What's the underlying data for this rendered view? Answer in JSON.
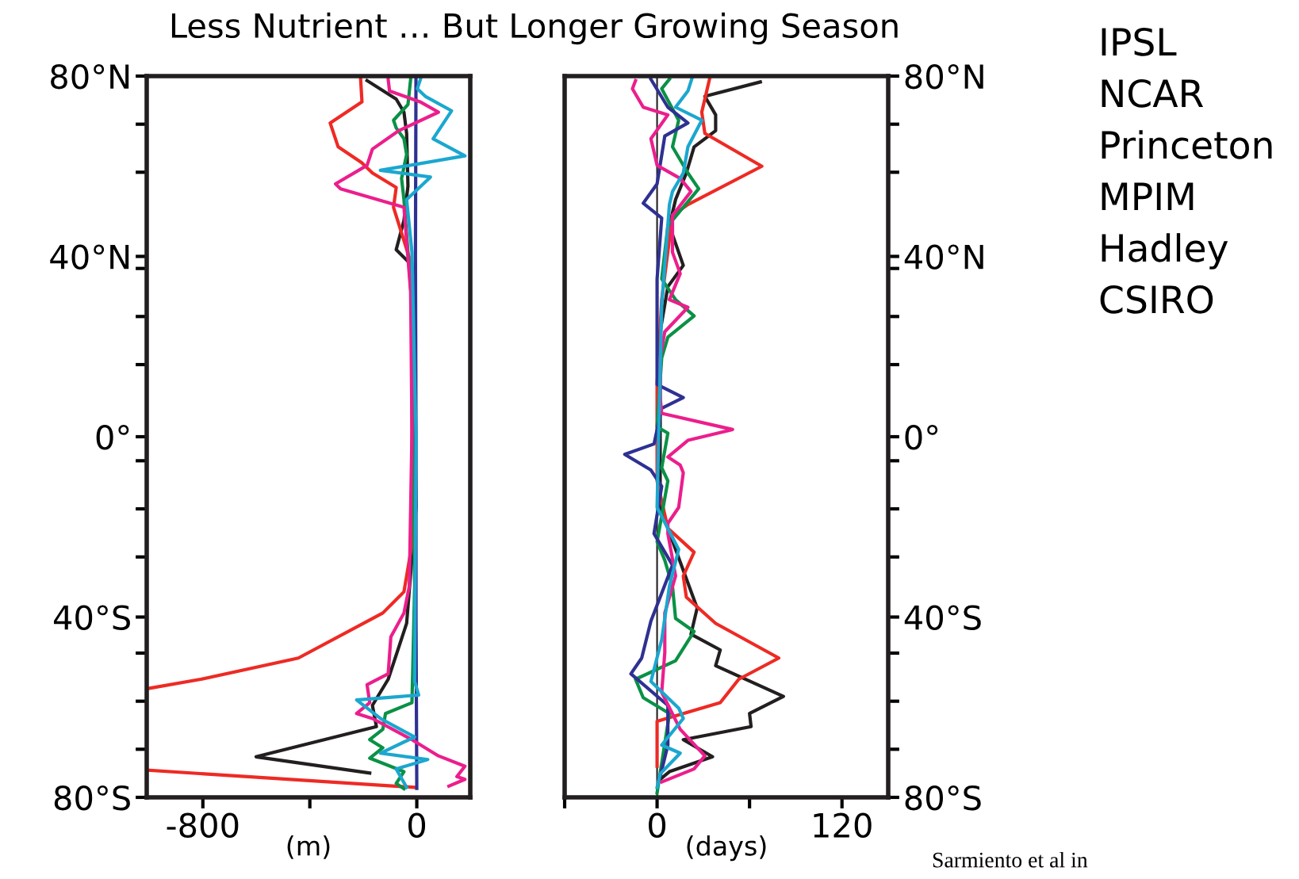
{
  "chart_data": [
    {
      "type": "line",
      "orientation": "horizontal",
      "title": "Less Nutrient … But Longer Growing Season",
      "xlabel": "(m)",
      "xlim": [
        -1010,
        200
      ],
      "xticks": [
        -800,
        {
          "value": -400,
          "label": null
        },
        0
      ],
      "ylim": [
        -80,
        80
      ],
      "yticks": [
        {
          "value": -80,
          "label": "80°S"
        },
        {
          "value": -69.33,
          "label": null
        },
        {
          "value": -58.67,
          "label": null
        },
        {
          "value": -48,
          "label": null
        },
        {
          "value": -40,
          "label": "40°S"
        },
        {
          "value": -26.67,
          "label": null
        },
        {
          "value": -16,
          "label": null
        },
        {
          "value": -5.33,
          "label": null
        },
        {
          "value": 0,
          "label": "0°"
        },
        {
          "value": 16,
          "label": null
        },
        {
          "value": 26.67,
          "label": null
        },
        {
          "value": 37.33,
          "label": null
        },
        {
          "value": 40,
          "label": "40°N"
        },
        {
          "value": 58.67,
          "label": null
        },
        {
          "value": 69.33,
          "label": null
        },
        {
          "value": 80,
          "label": "80°N"
        }
      ],
      "series": [
        {
          "color": "#231f20",
          "x": [
            79,
            74.9,
            72,
            67.3,
            55.6,
            48,
            41.5,
            38.6,
            20,
            -15.7,
            -41.4,
            -53.8,
            -59.6,
            -64.3,
            -71,
            -74.6
          ],
          "values": [
            -186,
            -77,
            -48,
            -38,
            -33,
            -48,
            -77,
            -28,
            -10,
            -3,
            -38,
            -107,
            -166,
            -151,
            -601,
            -176
          ]
        },
        {
          "color": "#ee2a24",
          "x": [
            79.3,
            74.3,
            69.6,
            64.3,
            60.8,
            58.5,
            55.3,
            50.9,
            39.7,
            29.2,
            -23.9,
            -34.4,
            -39.1,
            -49.1,
            -53.8,
            -55.8,
            -65,
            -74,
            -77.8
          ],
          "values": [
            -210,
            -205,
            -324,
            -294,
            -206,
            -166,
            -77,
            -87,
            -28,
            -18,
            -18,
            -48,
            -127,
            -443,
            -808,
            -1000,
            null,
            -1000,
            -3
          ]
        },
        {
          "color": "#0a9146",
          "x": [
            79.3,
            73.7,
            70.2,
            68.5,
            66.1,
            62.6,
            57.3,
            52.6,
            29.2,
            -33.2,
            -59,
            -61.4,
            -64.9,
            -67.2,
            -69,
            -71.3,
            -74.3,
            -76.9,
            -78.1
          ],
          "values": [
            -23,
            -33,
            -87,
            -77,
            -48,
            -38,
            -57,
            -48,
            -18,
            -8,
            -18,
            -117,
            -127,
            -176,
            -127,
            -176,
            -48,
            -77,
            -48
          ]
        },
        {
          "color": "#2e3192",
          "x": [
            80,
            40,
            0,
            -40,
            -78
          ],
          "values": [
            -3,
            -5,
            -3,
            -3,
            0
          ]
        },
        {
          "color": "#ec1e8c",
          "x": [
            79.3,
            76.7,
            74.3,
            72,
            67.9,
            63.8,
            60.2,
            56.1,
            55,
            50.9,
            32.1,
            1,
            -33.2,
            -39.1,
            -44.4,
            -52.6,
            -55,
            -59,
            -61.4,
            -62.5,
            -67.2,
            -70.8,
            -73.1,
            -75.4,
            -76,
            -77.5
          ],
          "values": [
            -107,
            -102,
            12,
            81,
            -67,
            -166,
            -186,
            -304,
            -285,
            -48,
            -23,
            -18,
            -28,
            -48,
            -97,
            -107,
            -186,
            -176,
            -225,
            -166,
            -18,
            81,
            180,
            150,
            180,
            120
          ]
        },
        {
          "color": "#1ba7cf",
          "x": [
            79.9,
            77.2,
            75.5,
            72.3,
            66.1,
            62.3,
            59.1,
            57.6,
            52.6,
            40.9,
            -0.1,
            -54.3,
            -57.3,
            -58.4,
            -62.5,
            -66.6,
            -70.2,
            -71.6,
            -73.7,
            -77.8
          ],
          "values": [
            17,
            2,
            32,
            130,
            61,
            180,
            -136,
            51,
            -38,
            -18,
            -3,
            -8,
            7,
            -225,
            -136,
            -8,
            -136,
            41,
            -77,
            -38
          ]
        }
      ]
    },
    {
      "type": "line",
      "orientation": "horizontal",
      "xlabel": "(days)",
      "xlim": [
        -60,
        150
      ],
      "xticks": [
        {
          "value": -60,
          "label": null
        },
        0,
        {
          "value": 60,
          "label": null
        },
        120
      ],
      "ylim": [
        -80,
        80
      ],
      "yticks": [
        {
          "value": -80,
          "label": "80°S"
        },
        {
          "value": -69.33,
          "label": null
        },
        {
          "value": -58.67,
          "label": null
        },
        {
          "value": -48,
          "label": null
        },
        {
          "value": -40,
          "label": "40°S"
        },
        {
          "value": -26.67,
          "label": null
        },
        {
          "value": -16,
          "label": null
        },
        {
          "value": -5.33,
          "label": null
        },
        {
          "value": 0,
          "label": "0°"
        },
        {
          "value": 16,
          "label": null
        },
        {
          "value": 26.67,
          "label": null
        },
        {
          "value": 37.33,
          "label": null
        },
        {
          "value": 40,
          "label": "40°N"
        },
        {
          "value": 58.67,
          "label": null
        },
        {
          "value": 69.33,
          "label": null
        },
        {
          "value": 80,
          "label": "80°N"
        }
      ],
      "ref_lines": [
        {
          "axis": "x",
          "value": 0,
          "color": "#231f20"
        }
      ],
      "series": [
        {
          "color": "#231f20",
          "x": [
            78.7,
            75.5,
            71.4,
            67.9,
            64.3,
            58.5,
            52.6,
            46.8,
            38,
            33.3,
            23.3,
            -15.7,
            -38,
            -43.8,
            -47.3,
            -50.8,
            -57.6,
            -61.4,
            -64.3,
            -67.2,
            -71,
            -74.3,
            -76
          ],
          "values": [
            67,
            31,
            38,
            38,
            24,
            19,
            12,
            8,
            17,
            7,
            2,
            2,
            26,
            22,
            41,
            38,
            82,
            60,
            61,
            17,
            36,
            8,
            2
          ]
        },
        {
          "color": "#ee2a24",
          "x": [
            79.3,
            72,
            67.3,
            60,
            51.5,
            49.1,
            30.4,
            11.6,
            -9.8,
            -20.3,
            -25.6,
            -30.9,
            -35.6,
            -41.4,
            -49.1,
            -53.8,
            -59,
            -63.1,
            -73.1
          ],
          "values": [
            34,
            29,
            31,
            68,
            20,
            10,
            3,
            0,
            0,
            7,
            24,
            17,
            19,
            38,
            79,
            53,
            41,
            0,
            0
          ]
        },
        {
          "color": "#0a9146",
          "x": [
            79.3,
            77.2,
            70.2,
            64.3,
            58.5,
            55,
            50.9,
            46.8,
            35,
            30.4,
            26.8,
            22.1,
            17.5,
            2.2,
            0.8,
            -6.9,
            -9.8,
            -23.3,
            -27.4,
            -33.2,
            -40.3,
            -43.2,
            -49.7,
            -53.8,
            -57.9,
            -61.4,
            -79
          ],
          "values": [
            8,
            3,
            14,
            10,
            20,
            27,
            17,
            7,
            3,
            12,
            24,
            7,
            3,
            0,
            7,
            3,
            7,
            0,
            5,
            10,
            12,
            24,
            12,
            -14,
            -9,
            8,
            0
          ]
        },
        {
          "color": "#2e3192",
          "x": [
            79.3,
            73.1,
            69.6,
            66.7,
            56.1,
            51.8,
            48.5,
            35,
            11.6,
            8.7,
            6.3,
            -1.6,
            -3.9,
            -7.4,
            -11,
            -21.5,
            -28.5,
            -40.9,
            -49.1,
            -52.6,
            -59.6,
            -68.4,
            -75.4
          ],
          "values": [
            -4,
            7,
            20,
            5,
            0,
            -9,
            3,
            0,
            0,
            17,
            3,
            -2,
            -21,
            -4,
            3,
            -2,
            10,
            -4,
            -10,
            -17,
            7,
            7,
            2
          ]
        },
        {
          "color": "#ec1e8c",
          "x": [
            79,
            77.2,
            73.1,
            71.4,
            66.1,
            60.2,
            57.3,
            54.4,
            49.1,
            40.9,
            36.2,
            30.4,
            28.7,
            23.3,
            17.5,
            8.7,
            5.2,
            1.6,
            -0.8,
            -4.5,
            -6.3,
            -8,
            -15.7,
            -19.2,
            -21.5,
            -30.9,
            -39.1,
            -47.9,
            -56.7,
            -64.9,
            -70.8,
            -73.7,
            -76.6
          ],
          "values": [
            -14,
            -16,
            -9,
            7,
            -4,
            0,
            15,
            22,
            10,
            10,
            15,
            8,
            20,
            5,
            2,
            2,
            3,
            49,
            20,
            7,
            15,
            17,
            14,
            7,
            7,
            12,
            5,
            5,
            3,
            15,
            31,
            24,
            3
          ]
        },
        {
          "color": "#1ba7cf",
          "x": [
            79.9,
            76.7,
            73.1,
            70.2,
            64.3,
            58.5,
            54.4,
            51.5,
            29.2,
            -0.1,
            -15.7,
            -25,
            -33.2,
            -45,
            -54.3,
            -60.2,
            -62.5,
            -68.4,
            -70.2,
            -74.8,
            -77.8
          ],
          "values": [
            23,
            20,
            12,
            29,
            20,
            17,
            10,
            8,
            3,
            1,
            0,
            14,
            8,
            3,
            -4,
            14,
            17,
            3,
            15,
            2,
            0
          ]
        }
      ],
      "annotations": [
        "IPSL",
        "NCAR",
        "Princeton",
        "MPIM",
        "Hadley",
        "CSIRO",
        "Sarmiento et al in"
      ]
    }
  ]
}
